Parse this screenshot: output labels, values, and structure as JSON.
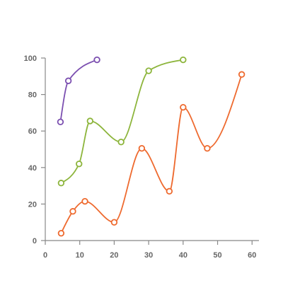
{
  "chart_data": {
    "type": "line",
    "title": "",
    "xlabel": "",
    "ylabel": "",
    "xlim": [
      0,
      62
    ],
    "ylim": [
      0,
      100
    ],
    "x_ticks": [
      0,
      10,
      20,
      30,
      40,
      50,
      60
    ],
    "y_ticks": [
      0,
      20,
      40,
      60,
      80,
      100
    ],
    "grid": false,
    "smooth": true,
    "marker": "open-circle",
    "series": [
      {
        "color": "#7b4fb0",
        "points": [
          [
            4.4,
            65
          ],
          [
            6.7,
            87.5
          ],
          [
            15,
            99
          ]
        ]
      },
      {
        "color": "#8db53c",
        "points": [
          [
            4.6,
            31.5
          ],
          [
            9.8,
            42
          ],
          [
            13,
            65.5
          ],
          [
            22,
            54
          ],
          [
            30,
            93
          ],
          [
            40,
            99
          ]
        ]
      },
      {
        "color": "#ee6a2f",
        "points": [
          [
            4.6,
            4
          ],
          [
            8,
            16
          ],
          [
            11.5,
            21.5
          ],
          [
            20,
            10
          ],
          [
            28,
            50.5
          ],
          [
            36,
            27
          ],
          [
            40,
            73
          ],
          [
            47,
            50.5
          ],
          [
            57,
            91
          ]
        ]
      }
    ]
  }
}
